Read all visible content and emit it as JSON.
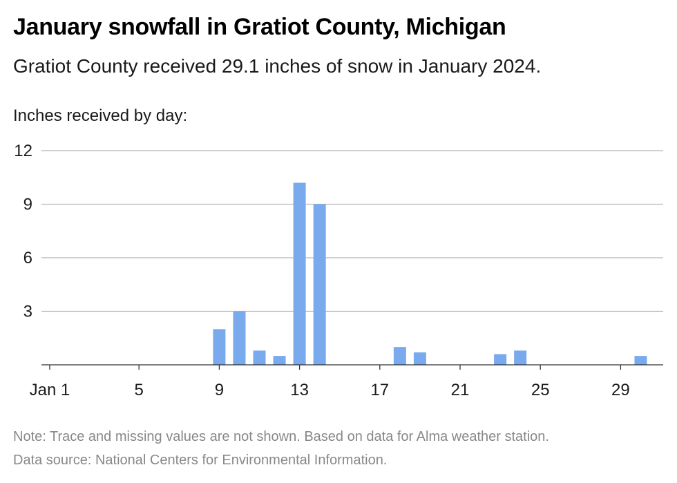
{
  "title": "January snowfall in Gratiot County, Michigan",
  "subtitle": "Gratiot County received 29.1 inches of snow in January 2024.",
  "ylabel": "Inches received by day:",
  "note": "Note: Trace and missing values are not shown. Based on data for Alma weather station.",
  "source": "Data source: National Centers for Environmental Information.",
  "colors": {
    "bar": "#7aaaee",
    "grid": "#b5b5b5",
    "axis": "#333333"
  },
  "chart_data": {
    "type": "bar",
    "x": [
      1,
      2,
      3,
      4,
      5,
      6,
      7,
      8,
      9,
      10,
      11,
      12,
      13,
      14,
      15,
      16,
      17,
      18,
      19,
      20,
      21,
      22,
      23,
      24,
      25,
      26,
      27,
      28,
      29,
      30,
      31
    ],
    "values": [
      0,
      0,
      0,
      0,
      0,
      0,
      0,
      0,
      2.0,
      3.0,
      0.8,
      0.5,
      10.2,
      9.0,
      0,
      0,
      0,
      1.0,
      0.7,
      0,
      0,
      0,
      0.6,
      0.8,
      0,
      0,
      0,
      0,
      0,
      0.5,
      0
    ],
    "ylim": [
      0,
      12
    ],
    "yticks": [
      3,
      6,
      9,
      12
    ],
    "xticks": [
      1,
      5,
      9,
      13,
      17,
      21,
      25,
      29
    ],
    "xtick_labels": [
      "Jan 1",
      "5",
      "9",
      "13",
      "17",
      "21",
      "25",
      "29"
    ],
    "grid": true
  }
}
